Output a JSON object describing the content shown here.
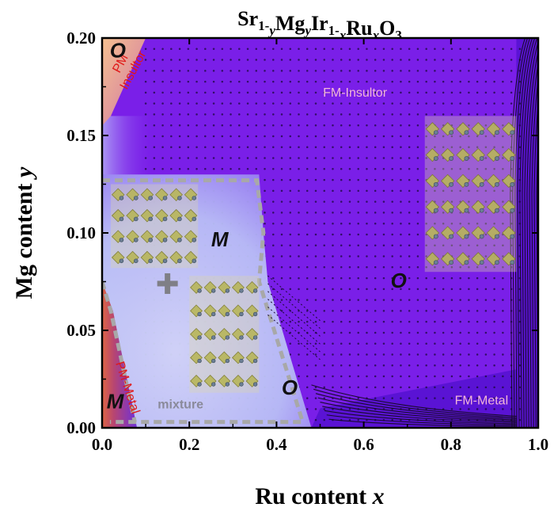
{
  "chart_data": {
    "type": "heatmap",
    "title": {
      "parts": [
        {
          "t": "Sr",
          "s": "n"
        },
        {
          "t": "1-",
          "s": "sub"
        },
        {
          "t": "y",
          "s": "subi"
        },
        {
          "t": "Mg",
          "s": "n"
        },
        {
          "t": "y",
          "s": "subi"
        },
        {
          "t": "Ir",
          "s": "n"
        },
        {
          "t": "1-",
          "s": "sub"
        },
        {
          "t": "x",
          "s": "subi"
        },
        {
          "t": "Ru",
          "s": "n"
        },
        {
          "t": "x",
          "s": "subi"
        },
        {
          "t": "O",
          "s": "n"
        },
        {
          "t": "3",
          "s": "sub"
        }
      ]
    },
    "xlabel": {
      "text": "Ru content",
      "var": "x"
    },
    "ylabel": {
      "text": "Mg content",
      "var": "y"
    },
    "xlim": [
      0.0,
      1.0
    ],
    "ylim": [
      0.0,
      0.2
    ],
    "xticks": [
      "0.0",
      "0.2",
      "0.4",
      "0.6",
      "0.8",
      "1.0"
    ],
    "yticks": [
      "0.00",
      "0.05",
      "0.10",
      "0.15",
      "0.20"
    ],
    "xtick_values": [
      0.0,
      0.2,
      0.4,
      0.6,
      0.8,
      1.0
    ],
    "ytick_values": [
      0.0,
      0.05,
      0.1,
      0.15,
      0.2
    ],
    "regions": [
      {
        "label": "FM-Insultor",
        "at": [
          0.58,
          0.17
        ],
        "color": "#f2b6d8"
      },
      {
        "label": "FM-Metal",
        "at": [
          0.87,
          0.012
        ],
        "color": "#f2b6d8"
      },
      {
        "label": "PM-Metal",
        "at": [
          0.05,
          0.02
        ],
        "color": "#e01818",
        "rotate": 72
      },
      {
        "label": "mixture",
        "at": [
          0.18,
          0.01
        ],
        "color": "#8a8a9a"
      }
    ],
    "pm_insulator_label": {
      "lines": [
        "PM",
        "Insultor"
      ],
      "at": [
        0.05,
        0.186
      ],
      "color": "#e01818"
    },
    "phase_letters": [
      {
        "text": "O",
        "at": [
          0.036,
          0.19
        ]
      },
      {
        "text": "M",
        "at": [
          0.27,
          0.093
        ]
      },
      {
        "text": "O",
        "at": [
          0.43,
          0.017
        ]
      },
      {
        "text": "O",
        "at": [
          0.68,
          0.072
        ]
      },
      {
        "text": "M",
        "at": [
          0.03,
          0.01
        ]
      }
    ],
    "colors": {
      "fm_insulator": "#7a1fe8",
      "fm_metal": "#5a13d4",
      "mixture": "#c6cdfa",
      "pm_metal": "#b53e6c",
      "pm_insulator": "#f1a88a",
      "dashed_boundary": "#a8a8a8"
    }
  }
}
